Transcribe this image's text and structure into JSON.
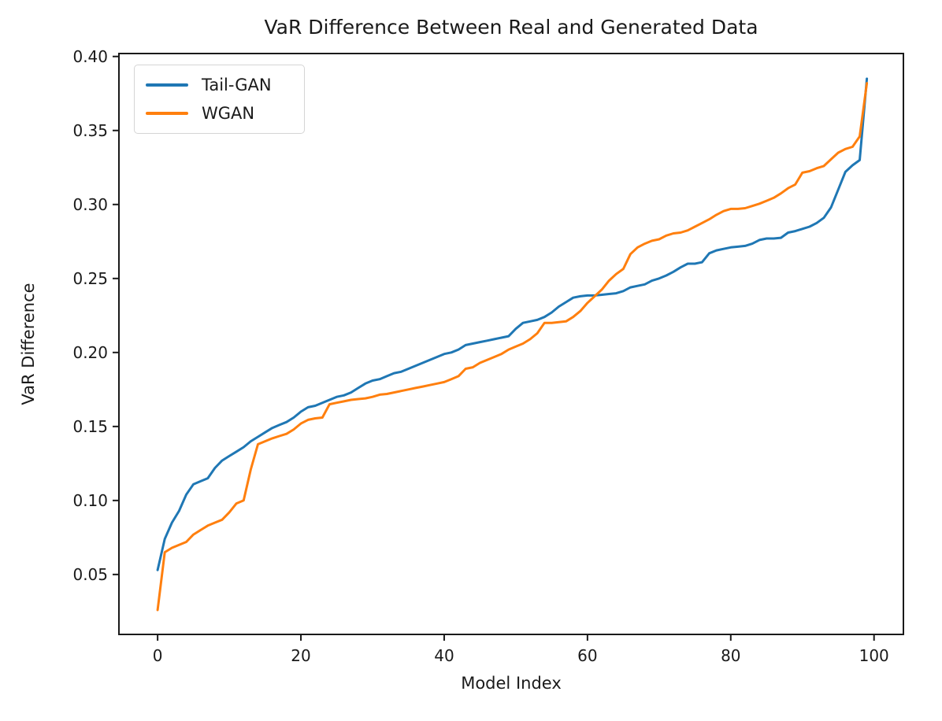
{
  "chart_data": {
    "type": "line",
    "title": "VaR Difference Between Real and Generated Data",
    "xlabel": "Model Index",
    "ylabel": "VaR Difference",
    "x_ticks": [
      0,
      20,
      40,
      60,
      80,
      100
    ],
    "y_ticks": [
      0.05,
      0.1,
      0.15,
      0.2,
      0.25,
      0.3,
      0.35,
      0.4
    ],
    "xlim": [
      -5.4,
      104.1
    ],
    "ylim": [
      0.0095,
      0.402
    ],
    "grid": false,
    "legend_position": "upper left",
    "background_color": "#ffffff",
    "text_color": "#1a1a1a",
    "series": [
      {
        "name": "Tail-GAN",
        "color": "#1f77b4",
        "x_is_index": true,
        "values": [
          0.053,
          0.074,
          0.085,
          0.093,
          0.104,
          0.111,
          0.113,
          0.115,
          0.122,
          0.127,
          0.13,
          0.133,
          0.136,
          0.14,
          0.143,
          0.146,
          0.149,
          0.151,
          0.153,
          0.156,
          0.16,
          0.163,
          0.164,
          0.166,
          0.168,
          0.17,
          0.171,
          0.173,
          0.176,
          0.179,
          0.181,
          0.182,
          0.184,
          0.186,
          0.187,
          0.189,
          0.191,
          0.193,
          0.195,
          0.197,
          0.199,
          0.2,
          0.202,
          0.205,
          0.206,
          0.207,
          0.208,
          0.209,
          0.21,
          0.211,
          0.216,
          0.22,
          0.221,
          0.222,
          0.224,
          0.227,
          0.231,
          0.234,
          0.237,
          0.238,
          0.2385,
          0.2385,
          0.239,
          0.2395,
          0.24,
          0.2415,
          0.244,
          0.245,
          0.246,
          0.2485,
          0.25,
          0.252,
          0.2545,
          0.2575,
          0.26,
          0.26,
          0.261,
          0.267,
          0.269,
          0.27,
          0.271,
          0.2715,
          0.272,
          0.2735,
          0.276,
          0.277,
          0.277,
          0.2775,
          0.281,
          0.282,
          0.2835,
          0.285,
          0.2875,
          0.291,
          0.298,
          0.31,
          0.322,
          0.3265,
          0.33,
          0.385
        ]
      },
      {
        "name": "WGAN",
        "color": "#ff7f0e",
        "x_is_index": true,
        "values": [
          0.026,
          0.065,
          0.068,
          0.07,
          0.072,
          0.077,
          0.08,
          0.083,
          0.085,
          0.087,
          0.092,
          0.098,
          0.1,
          0.121,
          0.138,
          0.14,
          0.142,
          0.1435,
          0.145,
          0.148,
          0.152,
          0.1545,
          0.1555,
          0.156,
          0.165,
          0.166,
          0.167,
          0.168,
          0.1685,
          0.169,
          0.17,
          0.1715,
          0.172,
          0.173,
          0.174,
          0.175,
          0.176,
          0.177,
          0.178,
          0.179,
          0.18,
          0.182,
          0.184,
          0.189,
          0.19,
          0.193,
          0.195,
          0.197,
          0.199,
          0.202,
          0.204,
          0.206,
          0.209,
          0.213,
          0.22,
          0.22,
          0.2205,
          0.221,
          0.224,
          0.228,
          0.2335,
          0.238,
          0.2425,
          0.2485,
          0.253,
          0.2565,
          0.2665,
          0.271,
          0.2735,
          0.2755,
          0.2765,
          0.279,
          0.2805,
          0.281,
          0.2825,
          0.285,
          0.2875,
          0.29,
          0.293,
          0.2955,
          0.297,
          0.297,
          0.2975,
          0.299,
          0.3005,
          0.3025,
          0.3045,
          0.3075,
          0.311,
          0.3135,
          0.3215,
          0.3225,
          0.3245,
          0.326,
          0.3305,
          0.335,
          0.3375,
          0.339,
          0.346,
          0.382
        ]
      }
    ]
  }
}
